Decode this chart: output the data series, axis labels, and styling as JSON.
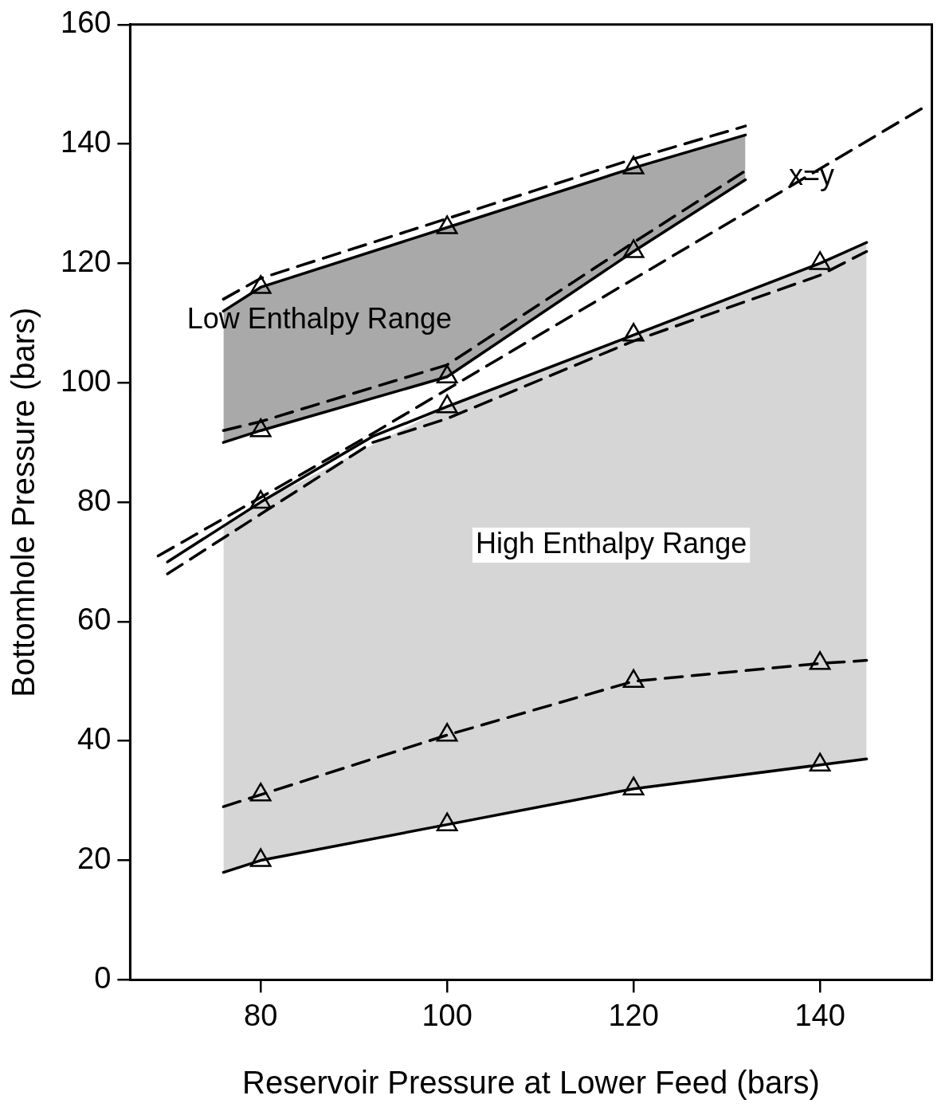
{
  "chart_data": {
    "type": "line",
    "xlabel": "Reservoir Pressure at Lower Feed (bars)",
    "ylabel": "Bottomhole Pressure (bars)",
    "xlim": [
      66,
      152
    ],
    "xticks": [
      80,
      100,
      120,
      140
    ],
    "ylim": [
      0,
      160
    ],
    "yticks": [
      0,
      20,
      40,
      60,
      80,
      100,
      120,
      140,
      160
    ],
    "series": [
      {
        "color": "#000000",
        "line_style": "dashed",
        "marker": "none",
        "x": [
          69,
          92,
          151
        ],
        "values": [
          71,
          91.5,
          146
        ]
      },
      {
        "type": "line",
        "color": "#000000",
        "line_style": "solid",
        "marker": "none",
        "x": [
          76,
          80,
          100,
          120,
          132
        ],
        "values": [
          112,
          116,
          126,
          136,
          141.5
        ]
      },
      {
        "type": "line",
        "color": "#000000",
        "line_style": "dashed",
        "marker": "none",
        "x": [
          76,
          80,
          100,
          120,
          132
        ],
        "values": [
          114,
          117.5,
          127.5,
          137.5,
          143
        ]
      },
      {
        "type": "line",
        "color": "#000000",
        "line_style": "solid",
        "marker": "none",
        "x": [
          76,
          80,
          100,
          120,
          132
        ],
        "values": [
          90,
          92,
          101,
          122,
          134
        ],
        "lower": [
          90,
          92,
          101,
          122,
          134
        ],
        "upper": [
          112,
          116,
          126,
          136,
          141.5
        ]
      },
      {
        "type": "line",
        "color": "#000000",
        "line_style": "dashed",
        "marker": "none",
        "x": [
          76,
          80,
          100,
          120,
          132
        ],
        "values": [
          92,
          93.5,
          103,
          123.5,
          135.5
        ]
      },
      {
        "type": "line",
        "color": "#000000",
        "line_style": "solid",
        "marker": "none",
        "x": [
          70,
          80,
          92,
          100,
          120,
          140,
          145
        ],
        "values": [
          70,
          80,
          91,
          96,
          108,
          120,
          123.5
        ]
      },
      {
        "type": "line",
        "color": "#000000",
        "line_style": "dashed",
        "marker": "none",
        "x": [
          70,
          80,
          92,
          100,
          120,
          140,
          145
        ],
        "values": [
          68,
          78,
          90,
          94,
          107,
          118,
          122
        ]
      },
      {
        "type": "line",
        "color": "#000000",
        "line_style": "dashed",
        "marker": "none",
        "x": [
          76,
          80,
          100,
          120,
          140,
          145
        ],
        "values": [
          29,
          31,
          41,
          50,
          53,
          53.5
        ]
      },
      {
        "type": "line",
        "color": "#000000",
        "line_style": "solid",
        "marker": "none",
        "x": [
          76,
          80,
          100,
          120,
          140,
          145
        ],
        "values": [
          18,
          20,
          26,
          32,
          36,
          37
        ],
        "lower": [
          18,
          20,
          26,
          32,
          36,
          37
        ],
        "upper": [
          76,
          80,
          96,
          108,
          120,
          123.5
        ]
      },
      {
        "type": "scatter",
        "color": "#000000",
        "marker": "triangle",
        "x": [
          80,
          100,
          120,
          80,
          100,
          120,
          80,
          100,
          120,
          140,
          80,
          100,
          120,
          140,
          80,
          100,
          120,
          140
        ],
        "values": [
          116,
          126,
          136,
          92,
          101,
          122,
          80,
          96,
          108,
          120,
          31,
          41,
          50,
          53,
          20,
          26,
          32,
          36
        ]
      }
    ],
    "annotations": [
      "Low Enthalpy Range",
      "High Enthalpy Range",
      "x=y"
    ]
  }
}
